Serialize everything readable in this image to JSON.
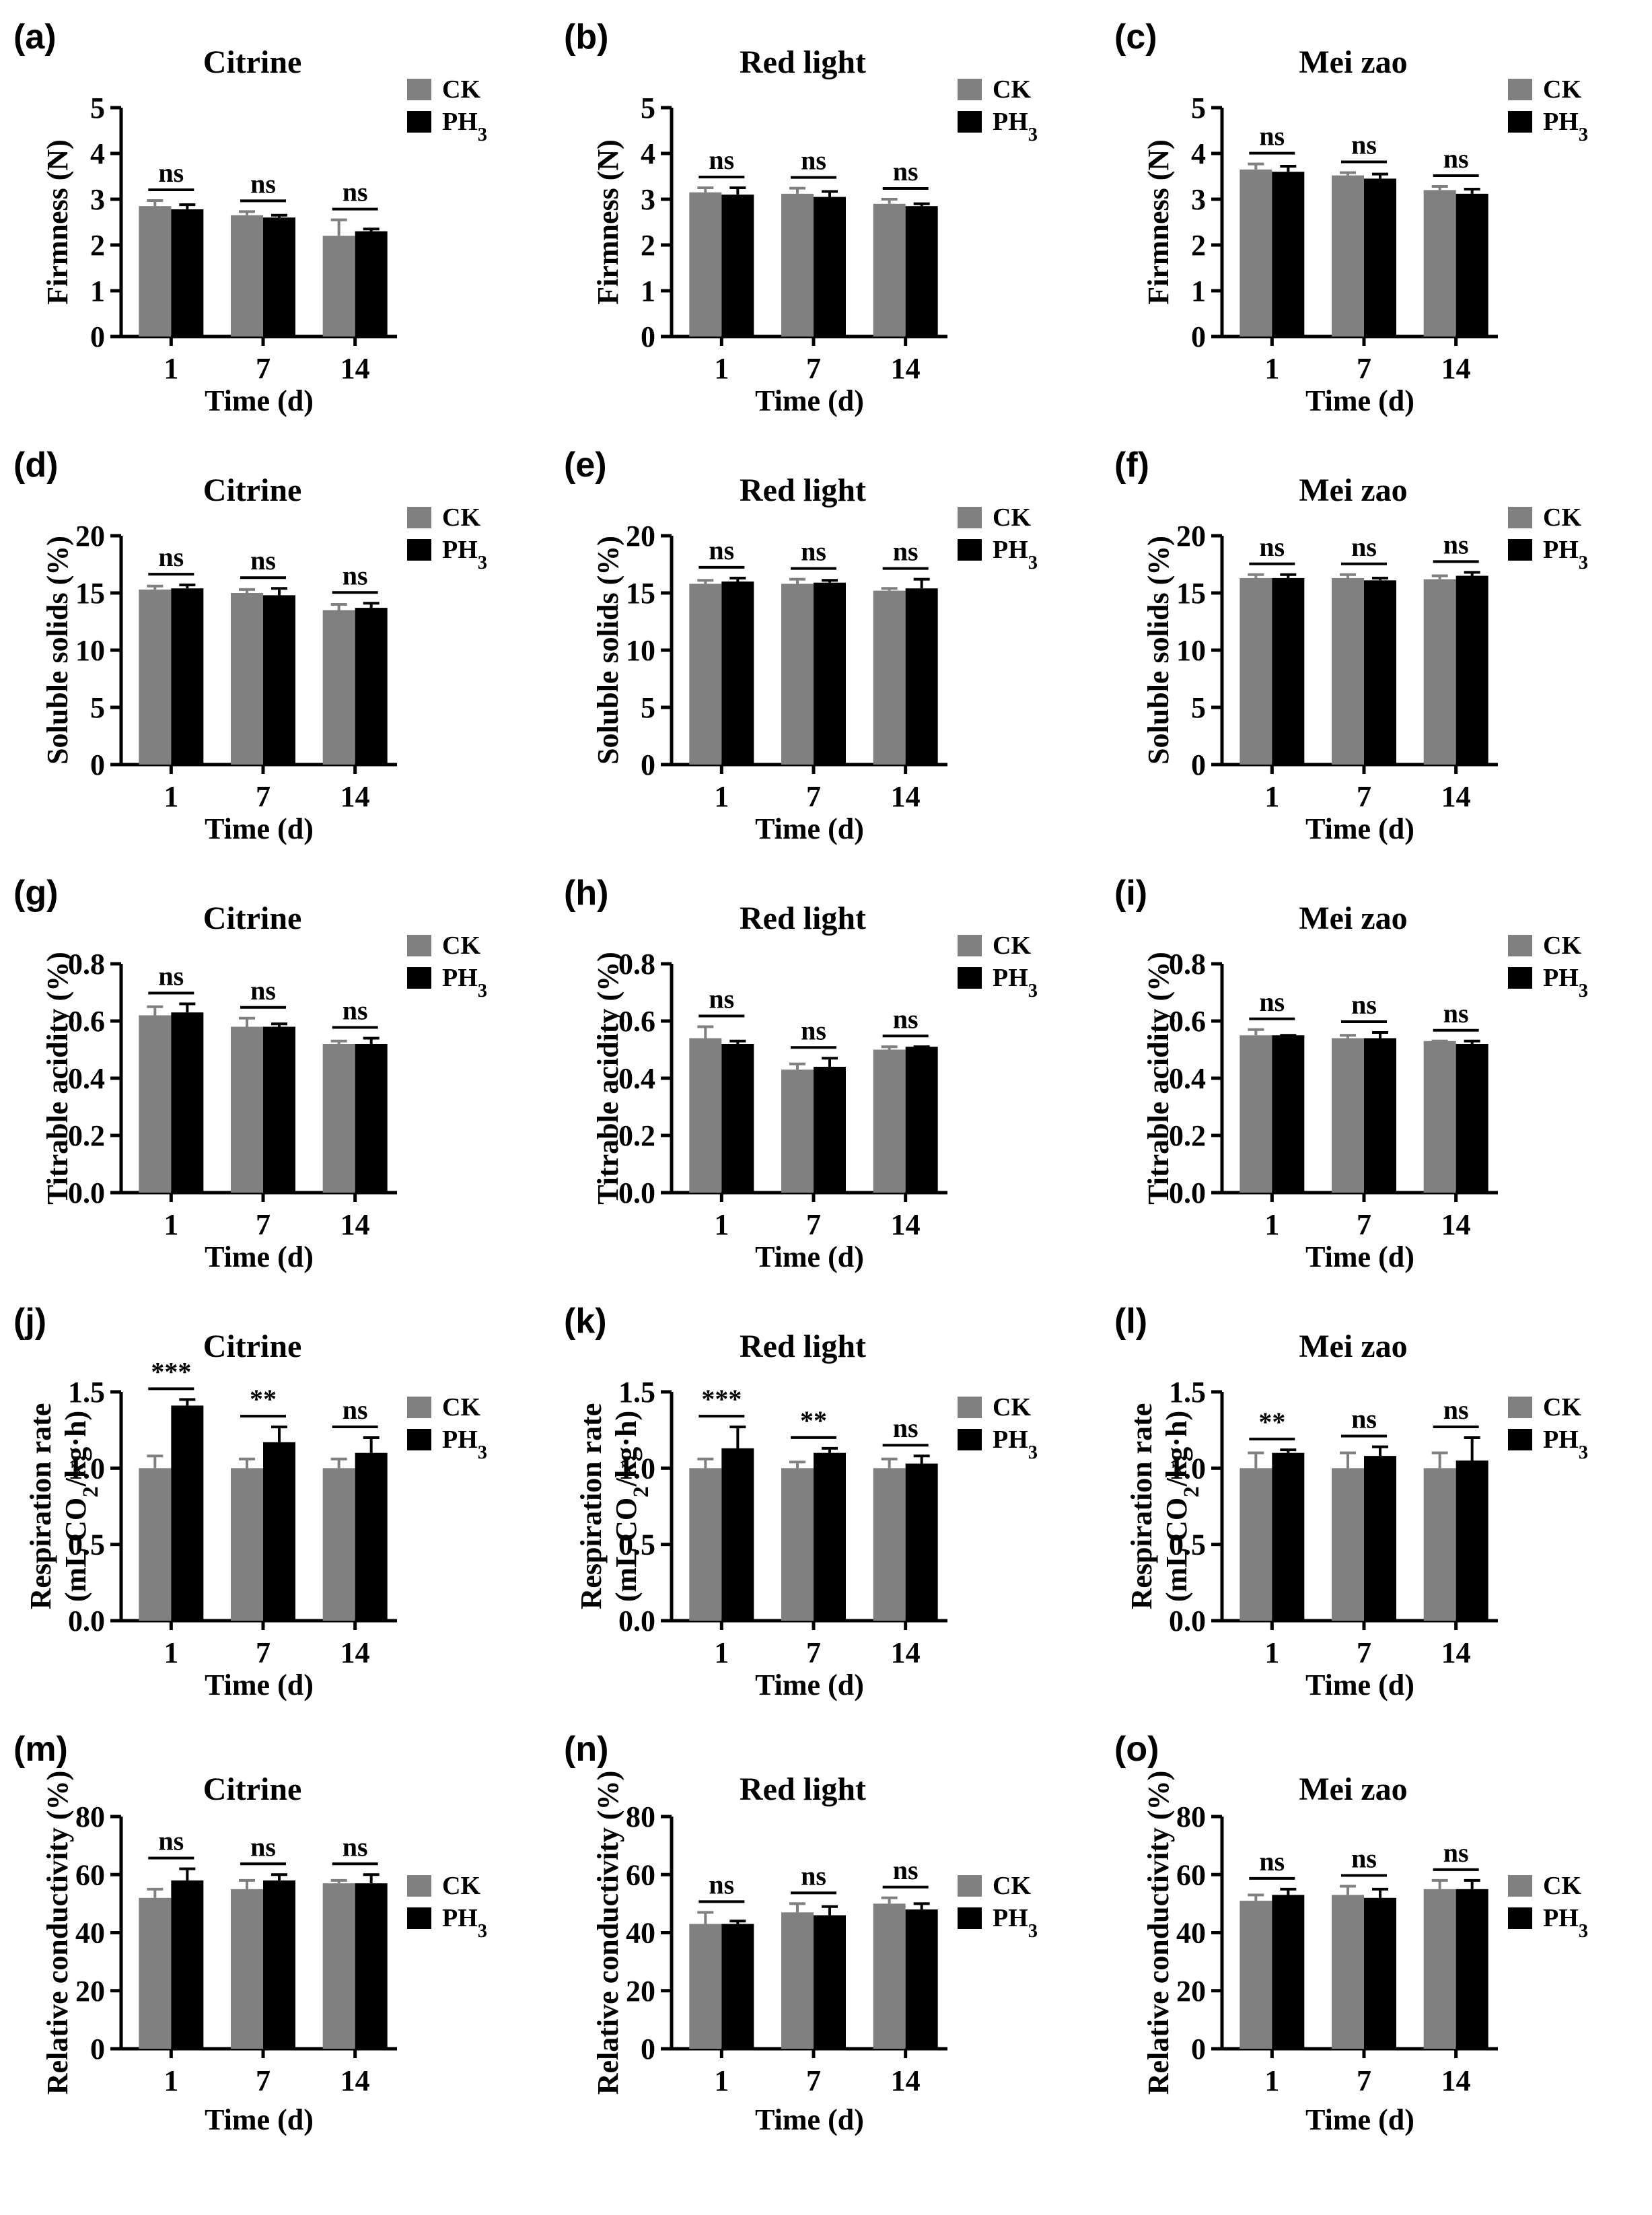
{
  "figure": {
    "xlabel": "Time (d)",
    "legend": [
      "CK",
      "PH3"
    ],
    "colors": {
      "CK": "#808080",
      "PH3": "#000000"
    }
  },
  "chart_data": [
    {
      "label": "(a)",
      "type": "bar",
      "title": "Citrine",
      "ylabel": [
        "Firmness (N)"
      ],
      "ylim": [
        0,
        5
      ],
      "yticks": [
        "0",
        "1",
        "2",
        "3",
        "4",
        "5"
      ],
      "categories": [
        "1",
        "7",
        "14"
      ],
      "series": [
        {
          "name": "CK",
          "values": [
            2.85,
            2.65,
            2.2
          ],
          "errors": [
            0.12,
            0.08,
            0.35
          ]
        },
        {
          "name": "PH3",
          "values": [
            2.78,
            2.6,
            2.3
          ],
          "errors": [
            0.1,
            0.05,
            0.05
          ]
        }
      ],
      "annotations": [
        "ns",
        "ns",
        "ns"
      ]
    },
    {
      "label": "(b)",
      "type": "bar",
      "title": "Red light",
      "ylabel": [
        "Firmness (N)"
      ],
      "ylim": [
        0,
        5
      ],
      "yticks": [
        "0",
        "1",
        "2",
        "3",
        "4",
        "5"
      ],
      "categories": [
        "1",
        "7",
        "14"
      ],
      "series": [
        {
          "name": "CK",
          "values": [
            3.15,
            3.12,
            2.9
          ],
          "errors": [
            0.1,
            0.12,
            0.1
          ]
        },
        {
          "name": "PH3",
          "values": [
            3.1,
            3.05,
            2.85
          ],
          "errors": [
            0.15,
            0.12,
            0.05
          ]
        }
      ],
      "annotations": [
        "ns",
        "ns",
        "ns"
      ]
    },
    {
      "label": "(c)",
      "type": "bar",
      "title": "Mei zao",
      "ylabel": [
        "Firmness (N)"
      ],
      "ylim": [
        0,
        5
      ],
      "yticks": [
        "0",
        "1",
        "2",
        "3",
        "4",
        "5"
      ],
      "categories": [
        "1",
        "7",
        "14"
      ],
      "series": [
        {
          "name": "CK",
          "values": [
            3.65,
            3.52,
            3.2
          ],
          "errors": [
            0.12,
            0.06,
            0.08
          ]
        },
        {
          "name": "PH3",
          "values": [
            3.6,
            3.45,
            3.12
          ],
          "errors": [
            0.12,
            0.1,
            0.1
          ]
        }
      ],
      "annotations": [
        "ns",
        "ns",
        "ns"
      ]
    },
    {
      "label": "(d)",
      "type": "bar",
      "title": "Citrine",
      "ylabel": [
        "Soluble solids (%)"
      ],
      "ylim": [
        0,
        20
      ],
      "yticks": [
        "0",
        "5",
        "10",
        "15",
        "20"
      ],
      "categories": [
        "1",
        "7",
        "14"
      ],
      "series": [
        {
          "name": "CK",
          "values": [
            15.3,
            15.0,
            13.5
          ],
          "errors": [
            0.3,
            0.3,
            0.5
          ]
        },
        {
          "name": "PH3",
          "values": [
            15.4,
            14.8,
            13.7
          ],
          "errors": [
            0.3,
            0.6,
            0.4
          ]
        }
      ],
      "annotations": [
        "ns",
        "ns",
        "ns"
      ]
    },
    {
      "label": "(e)",
      "type": "bar",
      "title": "Red light",
      "ylabel": [
        "Soluble solids (%)"
      ],
      "ylim": [
        0,
        20
      ],
      "yticks": [
        "0",
        "5",
        "10",
        "15",
        "20"
      ],
      "categories": [
        "1",
        "7",
        "14"
      ],
      "series": [
        {
          "name": "CK",
          "values": [
            15.8,
            15.8,
            15.2
          ],
          "errors": [
            0.3,
            0.4,
            0.2
          ]
        },
        {
          "name": "PH3",
          "values": [
            16.0,
            15.9,
            15.4
          ],
          "errors": [
            0.3,
            0.2,
            0.8
          ]
        }
      ],
      "annotations": [
        "ns",
        "ns",
        "ns"
      ]
    },
    {
      "label": "(f)",
      "type": "bar",
      "title": "Mei zao",
      "ylabel": [
        "Soluble solids (%)"
      ],
      "ylim": [
        0,
        20
      ],
      "yticks": [
        "0",
        "5",
        "10",
        "15",
        "20"
      ],
      "categories": [
        "1",
        "7",
        "14"
      ],
      "series": [
        {
          "name": "CK",
          "values": [
            16.3,
            16.3,
            16.2
          ],
          "errors": [
            0.3,
            0.3,
            0.3
          ]
        },
        {
          "name": "PH3",
          "values": [
            16.3,
            16.1,
            16.5
          ],
          "errors": [
            0.3,
            0.2,
            0.3
          ]
        }
      ],
      "annotations": [
        "ns",
        "ns",
        "ns"
      ]
    },
    {
      "label": "(g)",
      "type": "bar",
      "title": "Citrine",
      "ylabel": [
        "Titrable acidity (%)"
      ],
      "ylim": [
        0,
        0.8
      ],
      "yticks": [
        "0.0",
        "0.2",
        "0.4",
        "0.6",
        "0.8"
      ],
      "categories": [
        "1",
        "7",
        "14"
      ],
      "series": [
        {
          "name": "CK",
          "values": [
            0.62,
            0.58,
            0.52
          ],
          "errors": [
            0.03,
            0.03,
            0.01
          ]
        },
        {
          "name": "PH3",
          "values": [
            0.63,
            0.58,
            0.52
          ],
          "errors": [
            0.03,
            0.01,
            0.02
          ]
        }
      ],
      "annotations": [
        "ns",
        "ns",
        "ns"
      ]
    },
    {
      "label": "(h)",
      "type": "bar",
      "title": "Red light",
      "ylabel": [
        "Titrable acidity (%)"
      ],
      "ylim": [
        0,
        0.8
      ],
      "yticks": [
        "0.0",
        "0.2",
        "0.4",
        "0.6",
        "0.8"
      ],
      "categories": [
        "1",
        "7",
        "14"
      ],
      "series": [
        {
          "name": "CK",
          "values": [
            0.54,
            0.43,
            0.5
          ],
          "errors": [
            0.04,
            0.02,
            0.01
          ]
        },
        {
          "name": "PH3",
          "values": [
            0.52,
            0.44,
            0.51
          ],
          "errors": [
            0.01,
            0.03,
            0.0
          ]
        }
      ],
      "annotations": [
        "ns",
        "ns",
        "ns"
      ]
    },
    {
      "label": "(i)",
      "type": "bar",
      "title": "Mei zao",
      "ylabel": [
        "Titrable acidity (%)"
      ],
      "ylim": [
        0,
        0.8
      ],
      "yticks": [
        "0.0",
        "0.2",
        "0.4",
        "0.6",
        "0.8"
      ],
      "categories": [
        "1",
        "7",
        "14"
      ],
      "series": [
        {
          "name": "CK",
          "values": [
            0.55,
            0.54,
            0.53
          ],
          "errors": [
            0.02,
            0.01,
            0.0
          ]
        },
        {
          "name": "PH3",
          "values": [
            0.55,
            0.54,
            0.52
          ],
          "errors": [
            0.0,
            0.02,
            0.01
          ]
        }
      ],
      "annotations": [
        "ns",
        "ns",
        "ns"
      ]
    },
    {
      "label": "(j)",
      "type": "bar",
      "title": "Citrine",
      "ylabel": [
        "Respiration rate",
        "(mL CO2/kg·h)"
      ],
      "ylim": [
        0,
        1.5
      ],
      "yticks": [
        "0.0",
        "0.5",
        "1.0",
        "1.5"
      ],
      "categories": [
        "1",
        "7",
        "14"
      ],
      "series": [
        {
          "name": "CK",
          "values": [
            1.0,
            1.0,
            1.0
          ],
          "errors": [
            0.08,
            0.06,
            0.06
          ]
        },
        {
          "name": "PH3",
          "values": [
            1.41,
            1.17,
            1.1
          ],
          "errors": [
            0.04,
            0.1,
            0.1
          ]
        }
      ],
      "annotations": [
        "***",
        "**",
        "ns"
      ]
    },
    {
      "label": "(k)",
      "type": "bar",
      "title": "Red light",
      "ylabel": [
        "Respiration rate",
        "(mL CO2/kg·h)"
      ],
      "ylim": [
        0,
        1.5
      ],
      "yticks": [
        "0.0",
        "0.5",
        "1.0",
        "1.5"
      ],
      "categories": [
        "1",
        "7",
        "14"
      ],
      "series": [
        {
          "name": "CK",
          "values": [
            1.0,
            1.0,
            1.0
          ],
          "errors": [
            0.06,
            0.04,
            0.06
          ]
        },
        {
          "name": "PH3",
          "values": [
            1.13,
            1.1,
            1.03
          ],
          "errors": [
            0.14,
            0.03,
            0.05
          ]
        }
      ],
      "annotations": [
        "***",
        "**",
        "ns"
      ]
    },
    {
      "label": "(l)",
      "type": "bar",
      "title": "Mei zao",
      "ylabel": [
        "Respiration rate",
        "(mL CO2/kg·h)"
      ],
      "ylim": [
        0,
        1.5
      ],
      "yticks": [
        "0.0",
        "0.5",
        "1.0",
        "1.5"
      ],
      "categories": [
        "1",
        "7",
        "14"
      ],
      "series": [
        {
          "name": "CK",
          "values": [
            1.0,
            1.0,
            1.0
          ],
          "errors": [
            0.1,
            0.1,
            0.1
          ]
        },
        {
          "name": "PH3",
          "values": [
            1.1,
            1.08,
            1.05
          ],
          "errors": [
            0.02,
            0.06,
            0.15
          ]
        }
      ],
      "annotations": [
        "**",
        "ns",
        "ns"
      ]
    },
    {
      "label": "(m)",
      "type": "bar",
      "title": "Citrine",
      "ylabel": [
        "Relative conductivity (%)"
      ],
      "ylim": [
        0,
        80
      ],
      "yticks": [
        "0",
        "20",
        "40",
        "60",
        "80"
      ],
      "categories": [
        "1",
        "7",
        "14"
      ],
      "series": [
        {
          "name": "CK",
          "values": [
            52,
            55,
            57
          ],
          "errors": [
            3,
            3,
            1
          ]
        },
        {
          "name": "PH3",
          "values": [
            58,
            58,
            57
          ],
          "errors": [
            4,
            2,
            3
          ]
        }
      ],
      "annotations": [
        "ns",
        "ns",
        "ns"
      ]
    },
    {
      "label": "(n)",
      "type": "bar",
      "title": "Red light",
      "ylabel": [
        "Relative conductivity (%)"
      ],
      "ylim": [
        0,
        80
      ],
      "yticks": [
        "0",
        "20",
        "40",
        "60",
        "80"
      ],
      "categories": [
        "1",
        "7",
        "14"
      ],
      "series": [
        {
          "name": "CK",
          "values": [
            43,
            47,
            50
          ],
          "errors": [
            4,
            3,
            2
          ]
        },
        {
          "name": "PH3",
          "values": [
            43,
            46,
            48
          ],
          "errors": [
            1,
            3,
            2
          ]
        }
      ],
      "annotations": [
        "ns",
        "ns",
        "ns"
      ]
    },
    {
      "label": "(o)",
      "type": "bar",
      "title": "Mei zao",
      "ylabel": [
        "Relative conductivity (%)"
      ],
      "ylim": [
        0,
        80
      ],
      "yticks": [
        "0",
        "20",
        "40",
        "60",
        "80"
      ],
      "categories": [
        "1",
        "7",
        "14"
      ],
      "series": [
        {
          "name": "CK",
          "values": [
            51,
            53,
            55
          ],
          "errors": [
            2,
            3,
            3
          ]
        },
        {
          "name": "PH3",
          "values": [
            53,
            52,
            55
          ],
          "errors": [
            2,
            3,
            3
          ]
        }
      ],
      "annotations": [
        "ns",
        "ns",
        "ns"
      ]
    }
  ]
}
